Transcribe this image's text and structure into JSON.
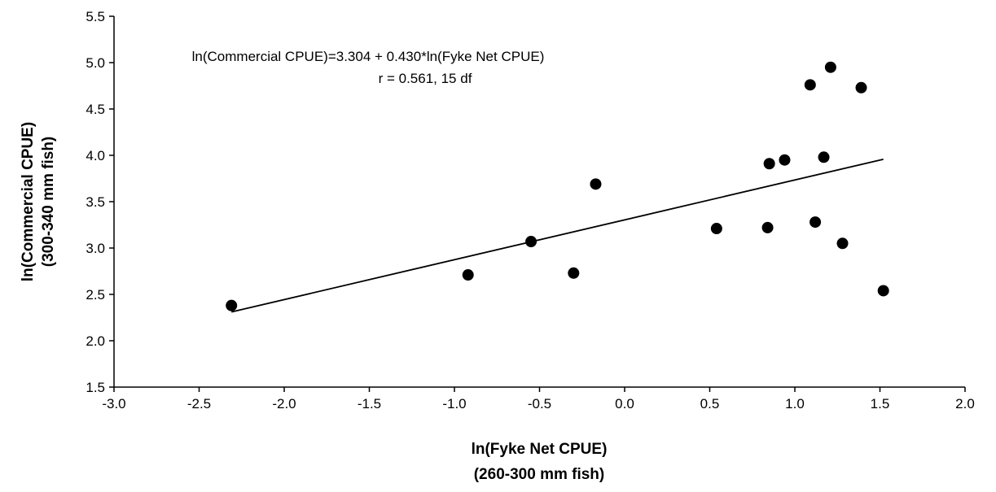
{
  "chart_data": {
    "type": "scatter",
    "title": "",
    "xlabel": [
      "ln(Fyke Net CPUE)",
      "(260-300 mm fish)"
    ],
    "ylabel": [
      "ln(Commercial CPUE)",
      "(300-340 mm fish)"
    ],
    "xlim": [
      -3.0,
      2.0
    ],
    "ylim": [
      1.5,
      5.5
    ],
    "xticks": [
      -3.0,
      -2.5,
      -2.0,
      -1.5,
      -1.0,
      -0.5,
      0.0,
      0.5,
      1.0,
      1.5,
      2.0
    ],
    "yticks": [
      1.5,
      2.0,
      2.5,
      3.0,
      3.5,
      4.0,
      4.5,
      5.0,
      5.5
    ],
    "xtick_labels": [
      "-3.0",
      "-2.5",
      "-2.0",
      "-1.5",
      "-1.0",
      "-0.5",
      "0.0",
      "0.5",
      "1.0",
      "1.5",
      "2.0"
    ],
    "ytick_labels": [
      "1.5",
      "2.0",
      "2.5",
      "3.0",
      "3.5",
      "4.0",
      "4.5",
      "5.0",
      "5.5"
    ],
    "grid": false,
    "legend": "none",
    "series": [
      {
        "points": [
          [
            -2.31,
            2.38
          ],
          [
            -0.92,
            2.71
          ],
          [
            -0.55,
            3.07
          ],
          [
            -0.3,
            2.73
          ],
          [
            -0.17,
            3.69
          ],
          [
            0.54,
            3.21
          ],
          [
            0.84,
            3.22
          ],
          [
            0.85,
            3.91
          ],
          [
            0.94,
            3.95
          ],
          [
            1.09,
            4.76
          ],
          [
            1.12,
            3.28
          ],
          [
            1.17,
            3.98
          ],
          [
            1.21,
            4.95
          ],
          [
            1.28,
            3.05
          ],
          [
            1.39,
            4.73
          ],
          [
            1.52,
            2.54
          ]
        ]
      }
    ],
    "fit_line": {
      "intercept": 3.304,
      "slope": 0.43,
      "x_range": [
        -2.31,
        1.52
      ]
    },
    "annotations": [
      "ln(Commercial CPUE)=3.304 + 0.430*ln(Fyke Net CPUE)",
      "r = 0.561, 15 df"
    ],
    "colors": {
      "marker": "#000000",
      "line": "#000000"
    }
  }
}
